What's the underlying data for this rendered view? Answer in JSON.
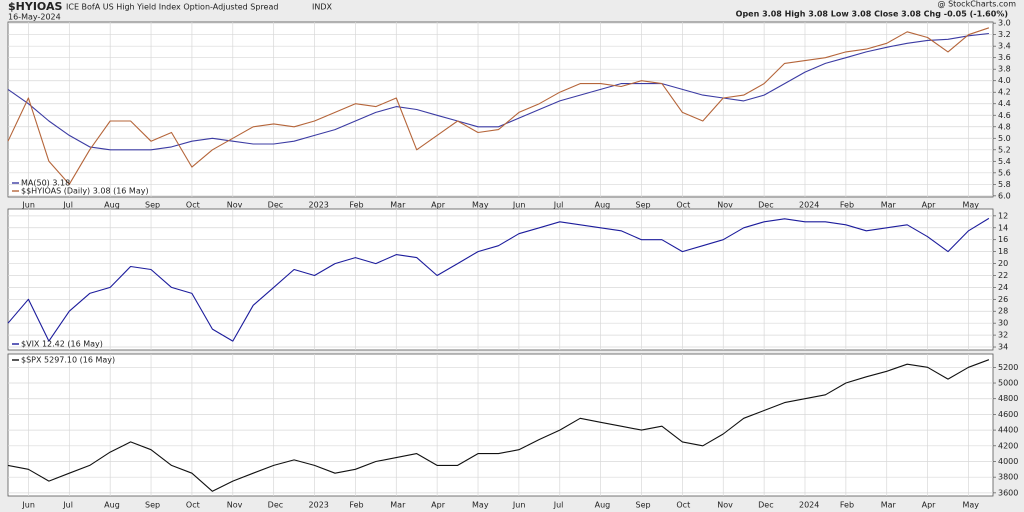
{
  "header": {
    "symbol": "$HYIOAS",
    "name": "ICE BofA US High Yield Index Option-Adjusted Spread",
    "exchange": "INDX",
    "date": "16-May-2024",
    "quote": "Open 3.08  High 3.08  Low 3.08  Close 3.08  Chg -0.05 (-1.60%)",
    "credit": "@ StockCharts.com"
  },
  "chart_data": [
    {
      "type": "line",
      "legend": "lower-left",
      "grid": true,
      "categories": [
        null,
        "Jun",
        null,
        "Jul",
        null,
        "Aug",
        null,
        "Sep",
        null,
        "Oct",
        null,
        "Nov",
        null,
        "Dec",
        null,
        "2023",
        null,
        "Feb",
        null,
        "Mar",
        null,
        "Apr",
        null,
        "May",
        null,
        "Jun",
        null,
        "Jul",
        null,
        "Aug",
        null,
        "Sep",
        null,
        "Oct",
        null,
        "Nov",
        null,
        "Dec",
        null,
        "2024",
        null,
        "Feb",
        null,
        "Mar",
        null,
        "Apr",
        null,
        "May",
        null
      ],
      "series": [
        {
          "name": "MA(50) 3.18",
          "color": "#3b3ba3",
          "values": [
            4.15,
            4.4,
            4.7,
            4.95,
            5.15,
            5.2,
            5.2,
            5.2,
            5.15,
            5.05,
            5.0,
            5.05,
            5.1,
            5.1,
            5.05,
            4.95,
            4.85,
            4.7,
            4.55,
            4.45,
            4.5,
            4.6,
            4.7,
            4.8,
            4.8,
            4.65,
            4.5,
            4.35,
            4.25,
            4.15,
            4.05,
            4.05,
            4.05,
            4.15,
            4.25,
            4.3,
            4.35,
            4.25,
            4.05,
            3.85,
            3.7,
            3.6,
            3.5,
            3.42,
            3.35,
            3.3,
            3.28,
            3.22,
            3.18
          ]
        },
        {
          "name": "$$HYIOAS (Daily) 3.08 (16 May)",
          "color": "#b5653a",
          "values": [
            5.05,
            4.3,
            5.4,
            5.8,
            5.2,
            4.7,
            4.7,
            5.05,
            4.9,
            5.5,
            5.2,
            5.0,
            4.8,
            4.75,
            4.8,
            4.7,
            4.55,
            4.4,
            4.45,
            4.3,
            5.2,
            4.95,
            4.7,
            4.9,
            4.85,
            4.55,
            4.4,
            4.2,
            4.05,
            4.05,
            4.1,
            4.0,
            4.05,
            4.55,
            4.7,
            4.3,
            4.25,
            4.05,
            3.7,
            3.65,
            3.6,
            3.5,
            3.45,
            3.35,
            3.15,
            3.25,
            3.5,
            3.2,
            3.08
          ]
        }
      ],
      "ylim": [
        6.02,
        2.98
      ],
      "yticks": [
        {
          "value": 3,
          "label": "3.0"
        },
        3.2,
        3.4,
        3.6,
        3.8,
        {
          "value": 4,
          "label": "4.0"
        },
        4.2,
        4.4,
        4.6,
        4.8,
        {
          "value": 5,
          "label": "5.0"
        },
        5.2,
        5.4,
        5.6,
        5.8,
        {
          "value": 6,
          "label": "6.0"
        }
      ]
    },
    {
      "type": "line",
      "legend": "lower-left",
      "grid": true,
      "series": [
        {
          "name": "$VIX 12.42 (16 May)",
          "color": "#1c1c9c",
          "values": [
            30,
            26,
            33,
            28,
            25,
            24,
            20.5,
            21,
            24,
            25,
            31,
            33,
            27,
            24,
            21,
            22,
            20,
            19,
            20,
            18.5,
            19,
            22,
            20,
            18,
            17,
            15,
            14,
            13,
            13.5,
            14,
            14.5,
            16,
            16,
            18,
            17,
            16,
            14,
            13,
            12.5,
            13,
            13,
            13.5,
            14.5,
            14,
            13.5,
            15.5,
            18,
            14.5,
            12.42
          ]
        }
      ],
      "ylim": [
        34.5,
        10.85
      ],
      "yticks": [
        12,
        14,
        16,
        18,
        20,
        22,
        24,
        26,
        28,
        30,
        32,
        34
      ]
    },
    {
      "type": "line",
      "legend": "upper-left",
      "grid": true,
      "categories": [
        null,
        "Jun",
        null,
        "Jul",
        null,
        "Aug",
        null,
        "Sep",
        null,
        "Oct",
        null,
        "Nov",
        null,
        "Dec",
        null,
        "2023",
        null,
        "Feb",
        null,
        "Mar",
        null,
        "Apr",
        null,
        "May",
        null,
        "Jun",
        null,
        "Jul",
        null,
        "Aug",
        null,
        "Sep",
        null,
        "Oct",
        null,
        "Nov",
        null,
        "Dec",
        null,
        "2024",
        null,
        "Feb",
        null,
        "Mar",
        null,
        "Apr",
        null,
        "May",
        null
      ],
      "series": [
        {
          "name": "$SPX 5297.10 (16 May)",
          "color": "#111111",
          "values": [
            3950,
            3900,
            3750,
            3850,
            3950,
            4120,
            4250,
            4150,
            3950,
            3850,
            3620,
            3750,
            3850,
            3950,
            4020,
            3950,
            3850,
            3900,
            4000,
            4050,
            4100,
            3950,
            3950,
            4100,
            4100,
            4150,
            4280,
            4400,
            4550,
            4500,
            4450,
            4400,
            4450,
            4250,
            4200,
            4350,
            4550,
            4650,
            4750,
            4800,
            4850,
            5000,
            5080,
            5150,
            5240,
            5200,
            5050,
            5200,
            5297.1
          ]
        }
      ],
      "ylim": [
        3560,
        5370
      ],
      "yticks": [
        3600,
        3800,
        4000,
        4200,
        4400,
        4600,
        4800,
        5000,
        5200
      ]
    }
  ]
}
